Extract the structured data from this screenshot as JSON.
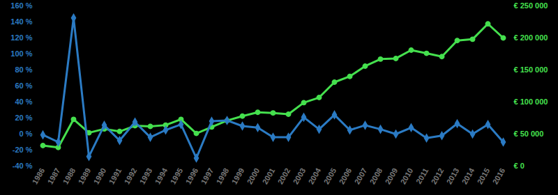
{
  "chart_data": {
    "type": "line",
    "categories": [
      "1986",
      "1987",
      "1988",
      "1989",
      "1990",
      "1991",
      "1992",
      "1993",
      "1994",
      "1995",
      "1996",
      "1997",
      "1998",
      "1999",
      "2000",
      "2001",
      "2002",
      "2003",
      "2004",
      "2005",
      "2006",
      "2007",
      "2008",
      "2009",
      "2010",
      "2011",
      "2012",
      "2013",
      "2014",
      "2015",
      "2016"
    ],
    "series": [
      {
        "color": "#2b7bc4",
        "marker": "diamond",
        "values": [
          -1,
          -10,
          145,
          -28,
          11,
          -8,
          15,
          -4,
          5,
          12,
          -30,
          16,
          17,
          10,
          8,
          -4,
          -4,
          21,
          6,
          24,
          5,
          11,
          6,
          0,
          8,
          -5,
          -2,
          13,
          0,
          12,
          -10
        ]
      },
      {
        "color": "#45e04e",
        "marker": "circle",
        "axis": "y2",
        "values": [
          32000,
          29000,
          73000,
          52000,
          58000,
          54000,
          63000,
          62000,
          64000,
          73000,
          51000,
          61000,
          71000,
          78000,
          84000,
          83000,
          81000,
          99000,
          107000,
          131000,
          140000,
          156000,
          167000,
          168000,
          181000,
          176000,
          171000,
          196000,
          198000,
          222000,
          200000
        ]
      }
    ],
    "ylim": [
      -40,
      160
    ],
    "yticks": [
      {
        "value": -40,
        "label": "-40 %"
      },
      {
        "value": -20,
        "label": "-20 %"
      },
      {
        "value": 0,
        "label": "0 %"
      },
      {
        "value": 20,
        "label": "20 %"
      },
      {
        "value": 40,
        "label": "40 %"
      },
      {
        "value": 60,
        "label": "60 %"
      },
      {
        "value": 80,
        "label": "80 %"
      },
      {
        "value": 100,
        "label": "100 %"
      },
      {
        "value": 120,
        "label": "120 %"
      },
      {
        "value": 140,
        "label": "140 %"
      },
      {
        "value": 160,
        "label": "160 %"
      }
    ],
    "y2lim": [
      0,
      250000
    ],
    "y2ticks": [
      {
        "value": 0,
        "label": "€ 0"
      },
      {
        "value": 50000,
        "label": "€ 50 000"
      },
      {
        "value": 100000,
        "label": "€ 100 000"
      },
      {
        "value": 150000,
        "label": "€ 150 000"
      },
      {
        "value": 200000,
        "label": "€ 200 000"
      },
      {
        "value": 250000,
        "label": "€ 250 000"
      }
    ],
    "grid": false
  }
}
